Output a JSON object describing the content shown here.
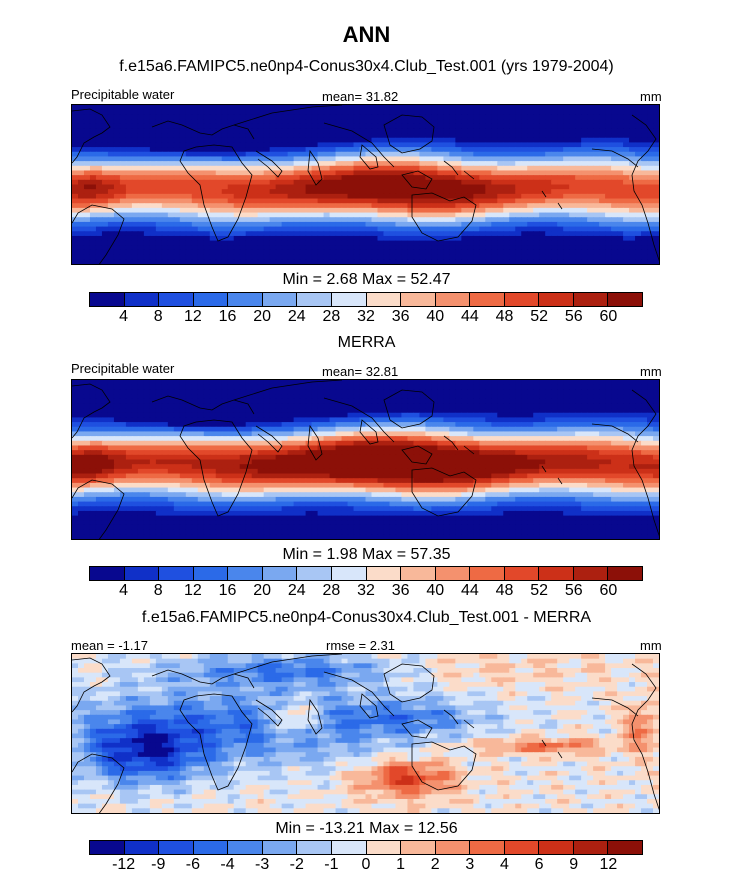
{
  "figure": {
    "main_title": "ANN"
  },
  "colors": {
    "palette": [
      "#08088f",
      "#1030c8",
      "#1f50e0",
      "#2b6ae8",
      "#4a86ec",
      "#7aa8f0",
      "#a8c6f4",
      "#d8e6fa",
      "#fbdcc9",
      "#f8b89a",
      "#f4916e",
      "#ee6a44",
      "#e2482a",
      "#cc3018",
      "#ac2010",
      "#8c1008"
    ]
  },
  "chart_data": [
    {
      "type": "heatmap",
      "title": "f.e15a6.FAMIPC5.ne0np4-Conus30x4.Club_Test.001 (yrs 1979-2004)",
      "left_label": "Precipitable water",
      "center_label": "mean=  31.82",
      "units": "mm",
      "min_max": "Min =   2.68 Max =  52.47",
      "min": 2.68,
      "max": 52.47,
      "mean": 31.82,
      "colorbar_ticks": [
        "4",
        "8",
        "12",
        "16",
        "20",
        "24",
        "28",
        "32",
        "36",
        "40",
        "44",
        "48",
        "52",
        "56",
        "60"
      ],
      "band_offset": 0,
      "band_strength": 1.0,
      "warm_pool": 1.0
    },
    {
      "type": "heatmap",
      "title": "MERRA",
      "left_label": "Precipitable water",
      "center_label": "mean=  32.81",
      "units": "mm",
      "min_max": "Min =   1.98 Max =  57.35",
      "min": 1.98,
      "max": 57.35,
      "mean": 32.81,
      "colorbar_ticks": [
        "4",
        "8",
        "12",
        "16",
        "20",
        "24",
        "28",
        "32",
        "36",
        "40",
        "44",
        "48",
        "52",
        "56",
        "60"
      ],
      "band_offset": 0.3,
      "band_strength": 1.08,
      "warm_pool": 1.25
    },
    {
      "type": "heatmap",
      "title": "f.e15a6.FAMIPC5.ne0np4-Conus30x4.Club_Test.001 - MERRA",
      "left_label": "mean =  -1.17",
      "center_label": "rmse =   2.31",
      "units": "mm",
      "min_max": "Min = -13.21 Max =  12.56",
      "min": -13.21,
      "max": 12.56,
      "mean": -1.17,
      "rmse": 2.31,
      "colorbar_ticks": [
        "-12",
        "-9",
        "-6",
        "-4",
        "-3",
        "-2",
        "-1",
        "0",
        "1",
        "2",
        "3",
        "4",
        "6",
        "9",
        "12"
      ]
    }
  ]
}
